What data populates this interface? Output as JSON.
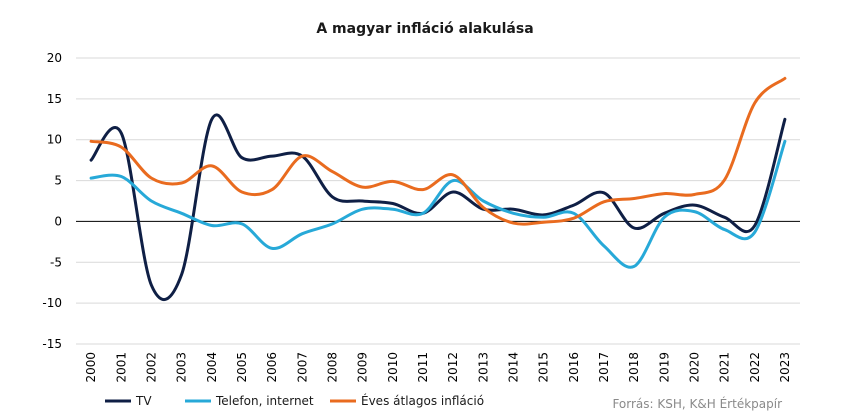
{
  "chart_data": {
    "type": "line",
    "title": "A magyar infláció alakulása",
    "x": [
      "2000",
      "2001",
      "2002",
      "2003",
      "2004",
      "2005",
      "2006",
      "2007",
      "2008",
      "2009",
      "2010",
      "2011",
      "2012",
      "2013",
      "2014",
      "2015",
      "2016",
      "2017",
      "2018",
      "2019",
      "2020",
      "2021",
      "2022",
      "2023"
    ],
    "ylim": [
      -15,
      20
    ],
    "yticks": [
      -15,
      -10,
      -5,
      0,
      5,
      10,
      15,
      20
    ],
    "grid": true,
    "legend_position": "bottom",
    "series": [
      {
        "name": "TV",
        "color": "#0f1f45",
        "values": [
          7.5,
          10.8,
          -7.8,
          -6.5,
          12.5,
          7.8,
          8.0,
          8.0,
          3.0,
          2.5,
          2.2,
          1.0,
          3.6,
          1.5,
          1.5,
          0.8,
          2.0,
          3.5,
          -0.8,
          1.0,
          2.0,
          0.5,
          -0.5,
          12.5
        ]
      },
      {
        "name": "Telefon, internet",
        "color": "#27a9d8",
        "values": [
          5.3,
          5.5,
          2.5,
          1.0,
          -0.5,
          -0.3,
          -3.3,
          -1.5,
          -0.3,
          1.5,
          1.5,
          1.0,
          5.0,
          2.5,
          1.0,
          0.5,
          1.0,
          -3.0,
          -5.5,
          0.5,
          1.2,
          -1.0,
          -1.3,
          9.8
        ]
      },
      {
        "name": "Éves átlagos infláció",
        "color": "#e96b1f",
        "values": [
          9.8,
          9.1,
          5.3,
          4.7,
          6.8,
          3.6,
          3.9,
          8.0,
          6.1,
          4.2,
          4.9,
          3.9,
          5.7,
          1.7,
          -0.2,
          -0.1,
          0.4,
          2.4,
          2.8,
          3.4,
          3.3,
          5.1,
          14.5,
          17.5
        ]
      }
    ],
    "source": "Forrás: KSH, K&H Értékpapír"
  }
}
